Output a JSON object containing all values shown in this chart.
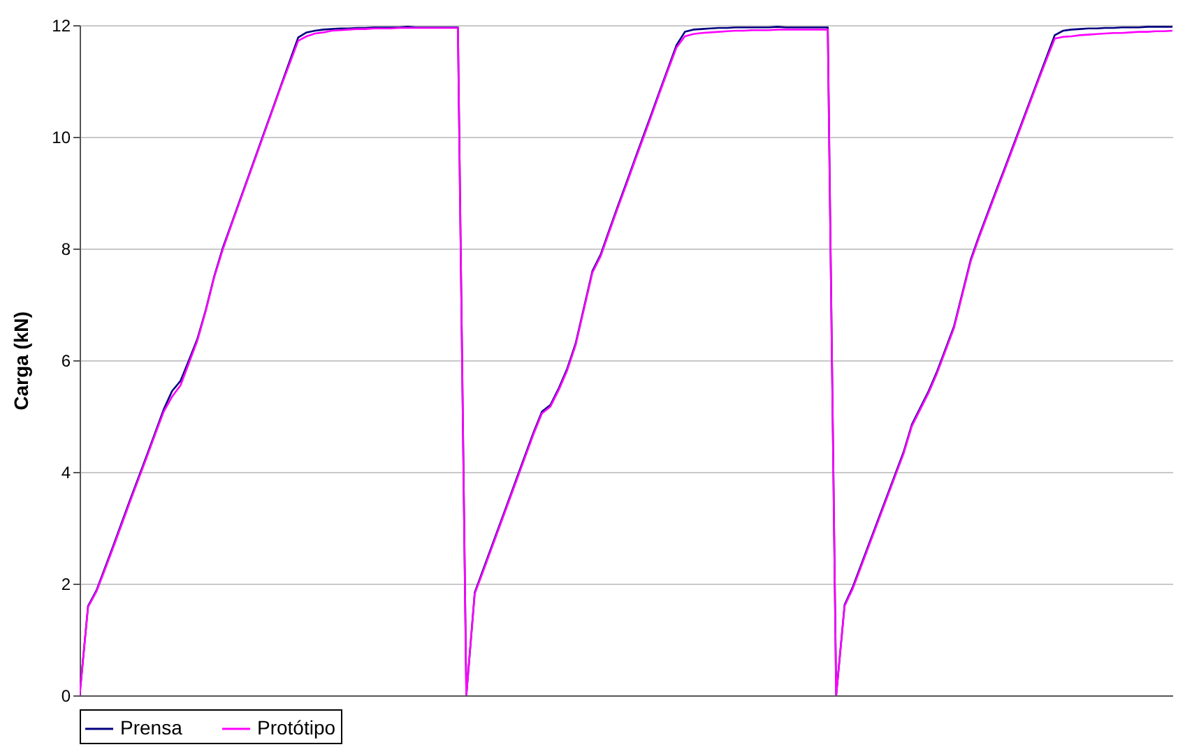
{
  "chart_data": {
    "type": "line",
    "ylabel": "Carga (kN)",
    "categories": [
      null,
      null,
      null,
      null,
      null,
      null,
      null,
      null,
      null,
      null,
      null,
      null,
      null,
      null,
      null,
      null,
      null,
      null,
      null,
      null,
      null,
      null,
      null,
      null,
      null,
      null,
      null,
      null,
      null,
      null,
      null,
      null,
      null,
      null,
      null,
      null,
      null,
      null,
      null,
      null,
      null,
      null,
      null,
      null,
      null,
      null,
      null,
      null,
      null,
      null,
      null,
      null,
      null,
      null,
      null,
      null,
      null,
      null,
      null,
      null,
      null,
      null,
      null,
      null,
      null,
      null,
      null,
      null,
      null,
      null,
      null,
      null,
      null,
      null,
      null,
      null,
      null,
      null,
      null,
      null,
      null,
      null,
      null,
      null,
      null,
      null,
      null,
      null,
      null,
      null,
      null,
      null,
      null,
      null,
      null,
      null,
      null,
      null,
      null,
      null,
      null,
      null,
      null,
      null,
      null,
      null,
      null,
      null,
      null,
      null,
      null,
      null,
      null,
      null,
      null,
      null,
      null,
      null,
      null,
      null,
      null,
      null,
      null,
      null,
      null,
      null,
      null,
      null,
      null,
      null,
      null
    ],
    "series": [
      {
        "name": "Prensa",
        "color": "#000080",
        "values": [
          0,
          1.6,
          1.88,
          2.28,
          2.68,
          3.09,
          3.5,
          3.9,
          4.3,
          4.71,
          5.12,
          5.45,
          5.63,
          6.0,
          6.38,
          6.9,
          7.5,
          8.0,
          8.42,
          8.84,
          9.26,
          9.68,
          10.1,
          10.52,
          10.94,
          11.36,
          11.78,
          11.87,
          11.9,
          11.92,
          11.93,
          11.94,
          11.94,
          11.95,
          11.95,
          11.96,
          11.96,
          11.96,
          11.96,
          11.97,
          11.96,
          11.96,
          11.96,
          11.96,
          11.96,
          11.96,
          0,
          1.84,
          2.25,
          2.66,
          3.07,
          3.48,
          3.89,
          4.3,
          4.71,
          5.08,
          5.2,
          5.5,
          5.85,
          6.3,
          6.95,
          7.6,
          7.9,
          8.33,
          8.75,
          9.16,
          9.58,
          9.99,
          10.4,
          10.82,
          11.23,
          11.64,
          11.88,
          11.92,
          11.93,
          11.94,
          11.95,
          11.95,
          11.96,
          11.96,
          11.96,
          11.96,
          11.96,
          11.97,
          11.96,
          11.96,
          11.96,
          11.96,
          11.96,
          11.96,
          0,
          1.62,
          1.95,
          2.35,
          2.75,
          3.15,
          3.55,
          3.95,
          4.35,
          4.85,
          5.15,
          5.45,
          5.8,
          6.2,
          6.6,
          7.2,
          7.8,
          8.23,
          8.63,
          9.03,
          9.42,
          9.82,
          10.22,
          10.62,
          11.02,
          11.42,
          11.82,
          11.9,
          11.92,
          11.93,
          11.94,
          11.94,
          11.95,
          11.95,
          11.96,
          11.96,
          11.96,
          11.97,
          11.97,
          11.97,
          11.97
        ]
      },
      {
        "name": "Protótipo",
        "color": "#ff00ff",
        "values": [
          0,
          1.58,
          1.86,
          2.25,
          2.65,
          3.06,
          3.47,
          3.87,
          4.27,
          4.68,
          5.08,
          5.35,
          5.55,
          5.95,
          6.35,
          6.88,
          7.48,
          7.97,
          8.4,
          8.82,
          9.24,
          9.66,
          10.08,
          10.5,
          10.92,
          11.32,
          11.72,
          11.8,
          11.85,
          11.87,
          11.9,
          11.91,
          11.92,
          11.93,
          11.93,
          11.94,
          11.94,
          11.94,
          11.95,
          11.95,
          11.95,
          11.95,
          11.95,
          11.95,
          11.95,
          11.95,
          0,
          1.82,
          2.22,
          2.63,
          3.04,
          3.45,
          3.86,
          4.27,
          4.68,
          5.05,
          5.17,
          5.47,
          5.82,
          6.27,
          6.92,
          7.57,
          7.87,
          8.3,
          8.72,
          9.13,
          9.55,
          9.96,
          10.37,
          10.79,
          11.2,
          11.6,
          11.8,
          11.84,
          11.86,
          11.87,
          11.88,
          11.89,
          11.9,
          11.9,
          11.91,
          11.91,
          11.91,
          11.92,
          11.92,
          11.92,
          11.92,
          11.92,
          11.92,
          11.92,
          0,
          1.6,
          1.92,
          2.32,
          2.72,
          3.12,
          3.52,
          3.92,
          4.32,
          4.82,
          5.12,
          5.42,
          5.77,
          6.17,
          6.57,
          7.17,
          7.77,
          8.2,
          8.6,
          9.0,
          9.39,
          9.79,
          10.19,
          10.59,
          10.99,
          11.38,
          11.76,
          11.79,
          11.8,
          11.82,
          11.83,
          11.84,
          11.85,
          11.86,
          11.86,
          11.87,
          11.88,
          11.88,
          11.89,
          11.89,
          11.9
        ]
      }
    ],
    "ylim": [
      0,
      12
    ],
    "yticks": [
      0,
      2,
      4,
      6,
      8,
      10,
      12
    ],
    "grid": "y",
    "legend": "bottom",
    "tick_labels": "y",
    "marker": "none",
    "line_style": "solid"
  }
}
